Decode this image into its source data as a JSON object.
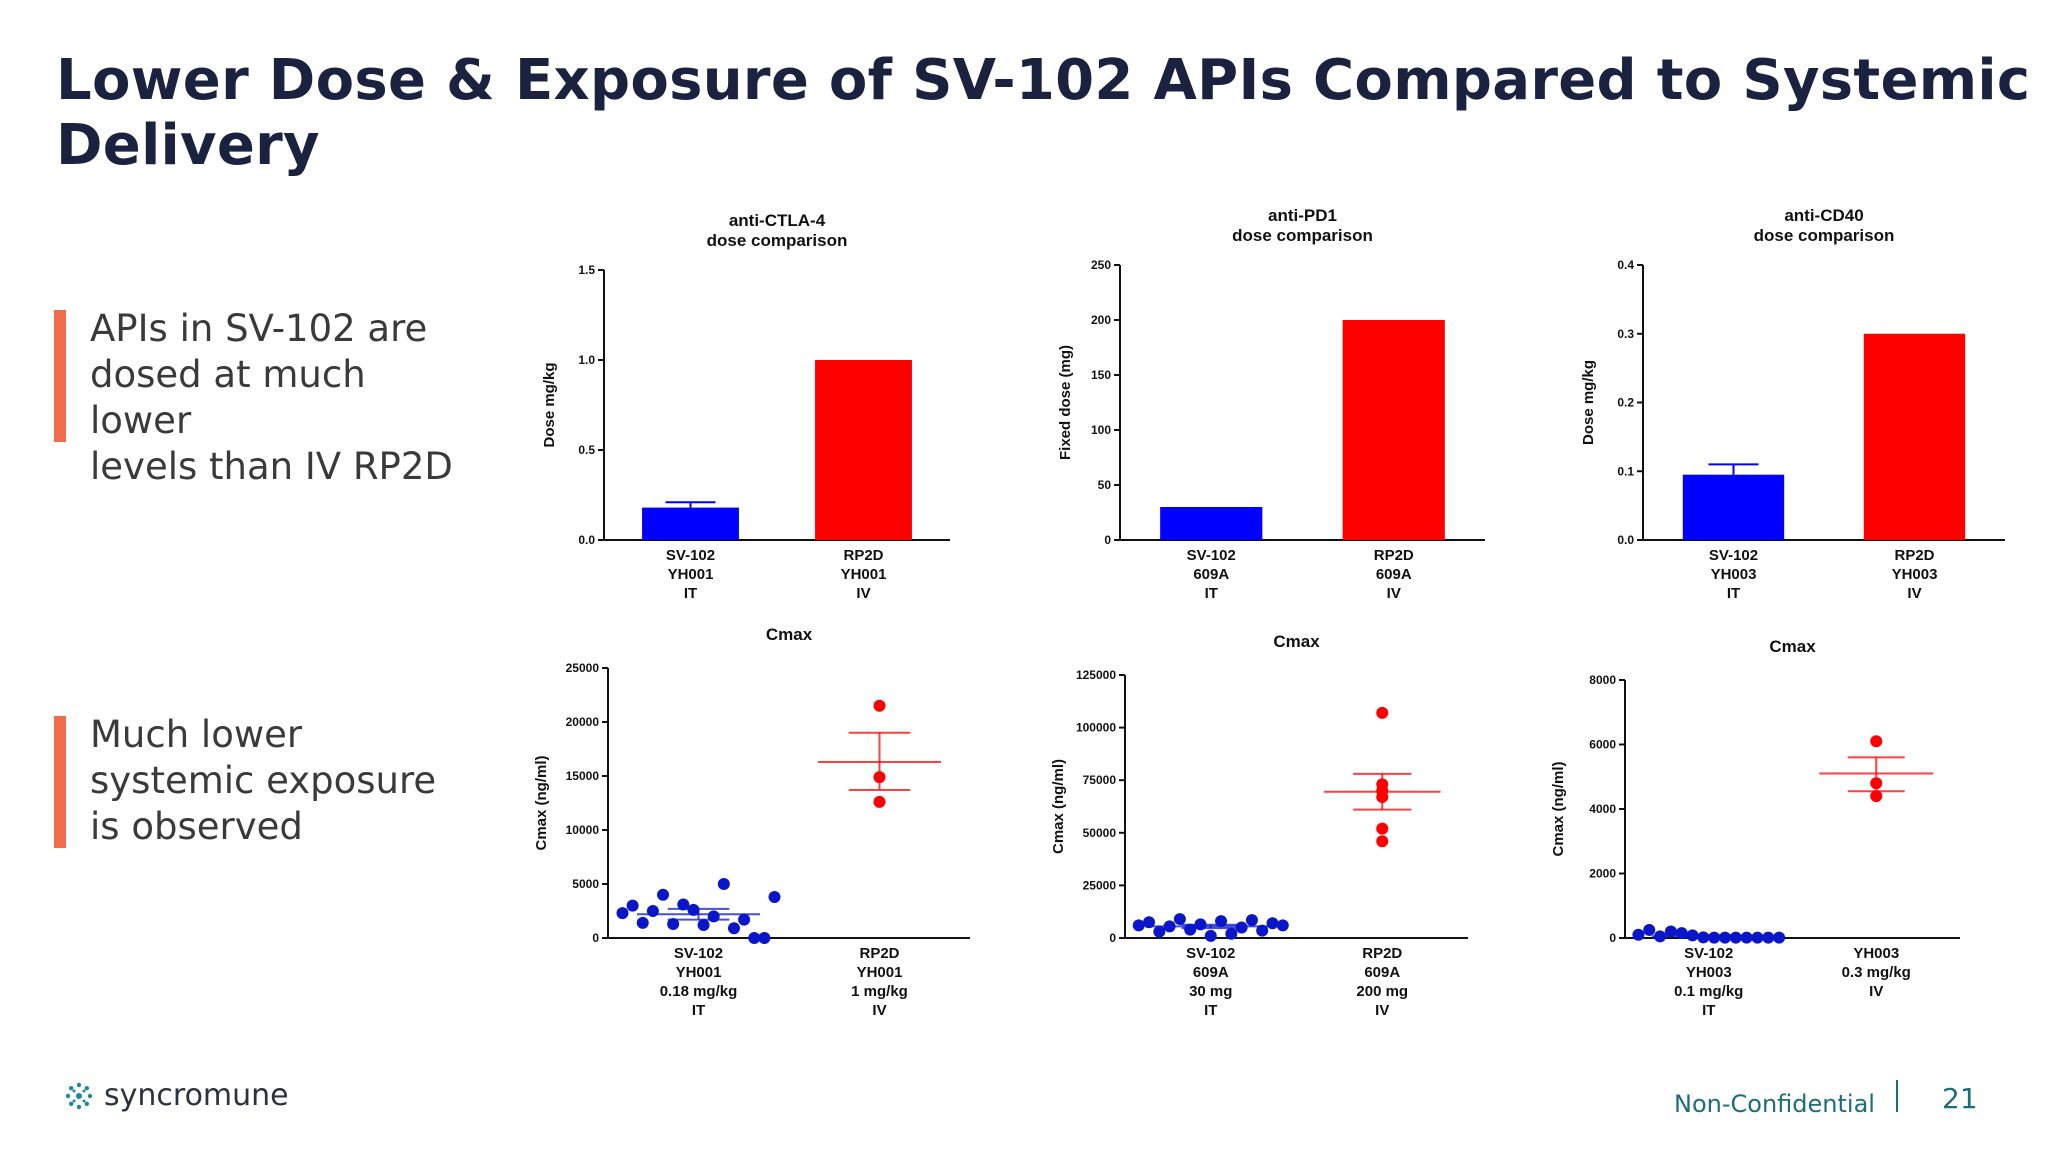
{
  "slide": {
    "title": "Lower Dose & Exposure of SV-102 APIs Compared to Systemic Delivery",
    "bullets": [
      {
        "text": "APIs in SV-102  are\ndosed at much lower\nlevels than IV RP2D"
      },
      {
        "text": "Much lower\nsystemic exposure\nis  observed"
      }
    ],
    "footer": {
      "logo": "syncromune",
      "confidentiality": "Non-Confidential",
      "page": "21"
    }
  },
  "colors": {
    "sv102": "#0000ff",
    "sv102_dots": "#0a16c8",
    "rp2d": "#ff0000",
    "accent": "#f26b4d",
    "title": "#1a2240",
    "footer": "#1b6e7a"
  },
  "chart_data": [
    {
      "type": "bar",
      "title": "anti-CTLA-4\ndose comparison",
      "ylabel": "Dose mg/kg",
      "ylim": [
        0,
        1.5
      ],
      "yticks": [
        "0.0",
        "0.5",
        "1.0",
        "1.5"
      ],
      "ytick_values": [
        0,
        0.5,
        1.0,
        1.5
      ],
      "categories": [
        "SV-102\nYH001\nIT",
        "RP2D\nYH001\nIV"
      ],
      "values": [
        0.18,
        1.0
      ],
      "errors": [
        0.03,
        0
      ],
      "bar_colors": [
        "#0000ff",
        "#ff0000"
      ]
    },
    {
      "type": "bar",
      "title": "anti-PD1\ndose comparison",
      "ylabel": "Fixed dose (mg)",
      "ylim": [
        0,
        250
      ],
      "yticks": [
        "0",
        "50",
        "100",
        "150",
        "200",
        "250"
      ],
      "ytick_values": [
        0,
        50,
        100,
        150,
        200,
        250
      ],
      "categories": [
        "SV-102\n609A\nIT",
        "RP2D\n609A\nIV"
      ],
      "values": [
        30,
        200
      ],
      "errors": [
        0,
        0
      ],
      "bar_colors": [
        "#0000ff",
        "#ff0000"
      ]
    },
    {
      "type": "bar",
      "title": "anti-CD40\ndose comparison",
      "ylabel": "Dose mg/kg",
      "ylim": [
        0,
        0.4
      ],
      "yticks": [
        "0.0",
        "0.1",
        "0.2",
        "0.3",
        "0.4"
      ],
      "ytick_values": [
        0,
        0.1,
        0.2,
        0.3,
        0.4
      ],
      "categories": [
        "SV-102\nYH003\nIT",
        "RP2D\nYH003\nIV"
      ],
      "values": [
        0.095,
        0.3
      ],
      "errors": [
        0.015,
        0
      ],
      "bar_colors": [
        "#0000ff",
        "#ff0000"
      ]
    },
    {
      "type": "scatter",
      "title": "Cmax",
      "ylabel": "Cmax (ng/ml)",
      "ylim": [
        0,
        25000
      ],
      "yticks": [
        "0",
        "5000",
        "10000",
        "15000",
        "20000",
        "25000"
      ],
      "ytick_values": [
        0,
        5000,
        10000,
        15000,
        20000,
        25000
      ],
      "categories": [
        "SV-102\nYH001\n0.18 mg/kg\nIT",
        "RP2D\nYH001\n1 mg/kg\nIV"
      ],
      "groups": [
        {
          "color": "#0a16c8",
          "points": [
            2300,
            3000,
            1400,
            2500,
            4000,
            1300,
            3100,
            2600,
            1200,
            2000,
            5000,
            900,
            1700,
            0,
            0,
            3800
          ],
          "mean": 2200,
          "sem_low": 1700,
          "sem_high": 2700
        },
        {
          "color": "#ff0000",
          "points": [
            21500,
            14900,
            12600
          ],
          "mean": 16300,
          "sem_low": 13700,
          "sem_high": 19000
        }
      ]
    },
    {
      "type": "scatter",
      "title": "Cmax",
      "ylabel": "Cmax (ng/ml)",
      "ylim": [
        0,
        125000
      ],
      "yticks": [
        "0",
        "25000",
        "50000",
        "75000",
        "100000",
        "125000"
      ],
      "ytick_values": [
        0,
        25000,
        50000,
        75000,
        100000,
        125000
      ],
      "categories": [
        "SV-102\n609A\n30 mg\nIT",
        "RP2D\n609A\n200 mg\nIV"
      ],
      "groups": [
        {
          "color": "#0a16c8",
          "points": [
            6000,
            7500,
            3000,
            5500,
            9000,
            4000,
            6500,
            1000,
            8000,
            2000,
            5000,
            8500,
            3500,
            7000,
            6000
          ],
          "mean": 5500,
          "sem_low": 4700,
          "sem_high": 6300
        },
        {
          "color": "#ff0000",
          "points": [
            107000,
            73000,
            67000,
            70000,
            52000,
            46000
          ],
          "mean": 69500,
          "sem_low": 61000,
          "sem_high": 78000
        }
      ]
    },
    {
      "type": "scatter",
      "title": "Cmax",
      "ylabel": "Cmax (ng/ml)",
      "ylim": [
        0,
        8000
      ],
      "yticks": [
        "0",
        "2000",
        "4000",
        "6000",
        "8000"
      ],
      "ytick_values": [
        0,
        2000,
        4000,
        6000,
        8000
      ],
      "categories": [
        "SV-102\nYH003\n0.1 mg/kg\nIT",
        "YH003\n0.3 mg/kg\nIV"
      ],
      "groups": [
        {
          "color": "#0a16c8",
          "points": [
            100,
            250,
            50,
            200,
            150,
            80,
            20,
            10,
            10,
            10,
            10,
            10,
            10,
            10
          ],
          "mean": 60,
          "sem_low": 30,
          "sem_high": 90
        },
        {
          "color": "#ff0000",
          "points": [
            6100,
            4800,
            4400
          ],
          "mean": 5100,
          "sem_low": 4550,
          "sem_high": 5600
        }
      ]
    }
  ]
}
